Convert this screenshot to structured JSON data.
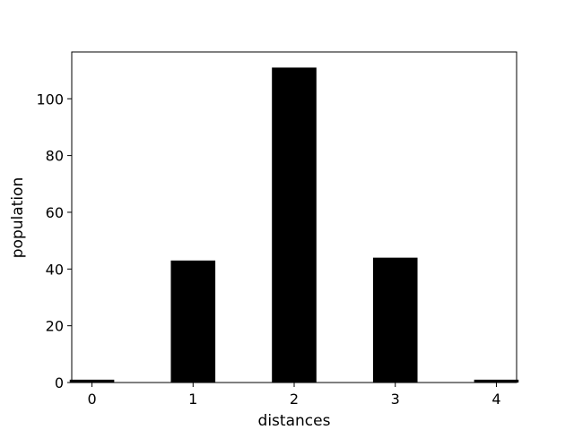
{
  "chart_data": {
    "type": "bar",
    "xlabel": "distances",
    "ylabel": "population",
    "x": [
      0,
      1,
      2,
      3,
      4
    ],
    "values": [
      1,
      43,
      111,
      44,
      1
    ],
    "xlim": [
      -0.2,
      4.2
    ],
    "ylim": [
      0,
      116.5
    ],
    "x_ticks": [
      0,
      1,
      2,
      3,
      4
    ],
    "y_ticks": [
      0,
      20,
      40,
      60,
      80,
      100
    ],
    "bar_width": 0.44,
    "bar_color": "#000000",
    "grid": false,
    "legend": "none"
  }
}
